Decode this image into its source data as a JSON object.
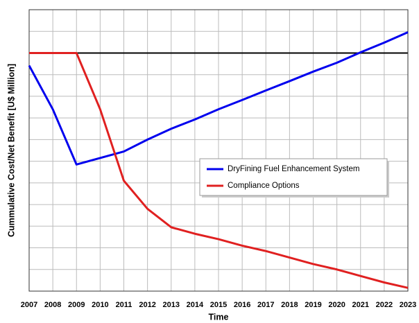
{
  "chart_data": {
    "type": "line",
    "x_label": "Time",
    "y_label": "Cummulative Cost/Net Benefit [U$ Million]",
    "x": [
      2007,
      2008,
      2009,
      2010,
      2011,
      2012,
      2013,
      2014,
      2015,
      2016,
      2017,
      2018,
      2019,
      2020,
      2021,
      2022,
      2023
    ],
    "series": [
      {
        "name": "DryFining Fuel Enhancement System",
        "color": "#0000ee",
        "values": [
          -0.58,
          -2.6,
          -5.15,
          -4.85,
          -4.55,
          -4.0,
          -3.5,
          -3.07,
          -2.6,
          -2.17,
          -1.73,
          -1.3,
          -0.86,
          -0.45,
          0.03,
          0.48,
          0.96
        ]
      },
      {
        "name": "Compliance Options",
        "color": "#e02020",
        "values": [
          0,
          0,
          0,
          -2.6,
          -5.9,
          -7.2,
          -8.05,
          -8.35,
          -8.6,
          -8.9,
          -9.15,
          -9.45,
          -9.75,
          -10.0,
          -10.3,
          -10.6,
          -10.85
        ]
      }
    ],
    "xlim": [
      2007,
      2023
    ],
    "xticks": [
      2007,
      2008,
      2009,
      2010,
      2011,
      2012,
      2013,
      2014,
      2015,
      2016,
      2017,
      2018,
      2019,
      2020,
      2021,
      2022,
      2023
    ],
    "ylim": [
      -11,
      2
    ],
    "yticks": [
      -11,
      -10,
      -9,
      -8,
      -7,
      -6,
      -5,
      -4,
      -3,
      -2,
      -1,
      0,
      1,
      2
    ],
    "ytick_labels": false,
    "grid": true,
    "legend": "right"
  }
}
